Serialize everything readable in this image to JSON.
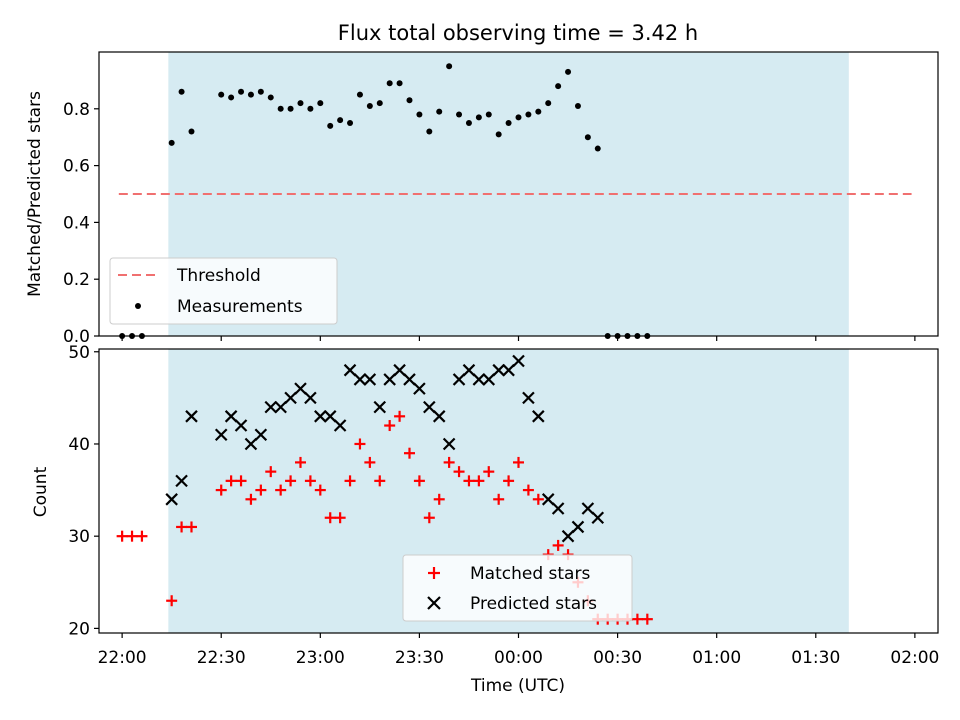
{
  "chart_data": [
    {
      "type": "scatter",
      "title": "Flux total observing time = 3.42 h",
      "ylabel": "Matched/Predicted stars",
      "xlim": [
        "21:53",
        "02:07"
      ],
      "ylim": [
        0,
        1.0
      ],
      "yticks": [
        "0.0",
        "0.2",
        "0.4",
        "0.6",
        "0.8"
      ],
      "shaded_region": [
        "22:14",
        "01:40"
      ],
      "threshold": {
        "name": "Threshold",
        "value": 0.5,
        "x_range": [
          "21:59",
          "01:59"
        ],
        "color": "#f07070",
        "style": "dashed"
      },
      "legend_position": "lower-left",
      "series": [
        {
          "name": "Measurements",
          "marker": "dot",
          "color": "#000000",
          "x": [
            "22:00",
            "22:03",
            "22:06",
            "22:09",
            "22:12",
            "22:15",
            "22:18",
            "22:21",
            "22:24",
            "22:27",
            "22:30",
            "22:33",
            "22:36",
            "22:39",
            "22:42",
            "22:45",
            "22:48",
            "22:51",
            "22:54",
            "22:57",
            "23:00",
            "23:03",
            "23:06",
            "23:09",
            "23:12",
            "23:15",
            "23:18",
            "23:21",
            "23:24",
            "23:27",
            "23:30",
            "23:33",
            "23:36",
            "23:39",
            "23:42",
            "23:45",
            "23:48",
            "23:51",
            "23:54",
            "23:57",
            "00:00",
            "00:03",
            "00:06",
            "00:09",
            "00:12",
            "00:15",
            "00:18",
            "00:21",
            "00:24",
            "00:27",
            "00:30",
            "00:33",
            "00:36",
            "00:39",
            "00:42",
            "00:45",
            "00:48",
            "00:51",
            "00:54",
            "00:57",
            "01:00",
            "01:03",
            "01:06",
            "01:09",
            "01:12",
            "01:15",
            "01:18",
            "01:21",
            "01:24",
            "01:27",
            "01:30",
            "01:33",
            "01:36",
            "01:39",
            "01:42",
            "01:45",
            "01:48",
            "01:51",
            "01:54",
            "01:57",
            "02:00"
          ],
          "y": [
            0,
            0,
            0,
            null,
            null,
            0.68,
            0.86,
            0.72,
            null,
            null,
            0.85,
            0.84,
            0.86,
            0.85,
            0.86,
            0.84,
            0.8,
            0.8,
            0.82,
            0.8,
            0.82,
            0.74,
            0.76,
            0.75,
            0.85,
            0.81,
            0.82,
            0.89,
            0.89,
            0.83,
            0.78,
            0.72,
            0.79,
            0.95,
            0.78,
            0.75,
            0.77,
            0.78,
            0.71,
            0.75,
            0.77,
            0.78,
            0.79,
            0.82,
            0.88,
            0.93,
            0.81,
            0.7,
            0.66,
            0,
            0,
            0,
            0,
            0,
            null,
            null,
            null,
            null,
            null,
            null,
            null,
            null,
            null,
            null,
            null,
            null,
            null,
            null,
            null,
            null,
            null,
            null,
            null,
            null,
            null,
            null,
            null,
            null,
            null,
            null,
            null
          ]
        }
      ]
    },
    {
      "type": "scatter",
      "ylabel": "Count",
      "xlabel": "Time (UTC)",
      "xlim": [
        "21:53",
        "02:07"
      ],
      "ylim": [
        19.5,
        50.3
      ],
      "yticks": [
        "20",
        "30",
        "40",
        "50"
      ],
      "xticks": [
        "22:00",
        "22:30",
        "23:00",
        "23:30",
        "00:00",
        "00:30",
        "01:00",
        "01:30",
        "02:00"
      ],
      "shaded_region": [
        "22:14",
        "01:40"
      ],
      "legend_position": "lower-center",
      "series": [
        {
          "name": "Matched stars",
          "marker": "plus",
          "color": "#ff0000",
          "x": [
            "22:00",
            "22:03",
            "22:06",
            "22:09",
            "22:12",
            "22:15",
            "22:18",
            "22:21",
            "22:24",
            "22:27",
            "22:30",
            "22:33",
            "22:36",
            "22:39",
            "22:42",
            "22:45",
            "22:48",
            "22:51",
            "22:54",
            "22:57",
            "23:00",
            "23:03",
            "23:06",
            "23:09",
            "23:12",
            "23:15",
            "23:18",
            "23:21",
            "23:24",
            "23:27",
            "23:30",
            "23:33",
            "23:36",
            "23:39",
            "23:42",
            "23:45",
            "23:48",
            "23:51",
            "23:54",
            "23:57",
            "00:00",
            "00:03",
            "00:06",
            "00:09",
            "00:12",
            "00:15",
            "00:18",
            "00:21",
            "00:24",
            "00:27",
            "00:30",
            "00:33",
            "00:36",
            "00:39",
            "00:42",
            "00:45",
            "00:48",
            "00:51",
            "00:54",
            "00:57",
            "01:00",
            "01:03",
            "01:06",
            "01:09",
            "01:12",
            "01:15",
            "01:18",
            "01:21",
            "01:24",
            "01:27",
            "01:30",
            "01:33",
            "01:36",
            "01:39",
            "01:42",
            "01:45",
            "01:48",
            "01:51",
            "01:54",
            "01:57",
            "02:00"
          ],
          "y": [
            30,
            30,
            30,
            null,
            null,
            23,
            31,
            31,
            null,
            null,
            35,
            36,
            36,
            34,
            35,
            37,
            35,
            36,
            38,
            36,
            35,
            32,
            32,
            36,
            40,
            38,
            36,
            42,
            43,
            39,
            36,
            32,
            34,
            38,
            37,
            36,
            36,
            37,
            34,
            36,
            38,
            35,
            34,
            28,
            29,
            28,
            25,
            23,
            21,
            21,
            21,
            21,
            21,
            21,
            null,
            null,
            null,
            null,
            null,
            null,
            null,
            null,
            null,
            null,
            null,
            null,
            null,
            null,
            null,
            null,
            null,
            null,
            null,
            null,
            null,
            null,
            null,
            null,
            null,
            null,
            null
          ]
        },
        {
          "name": "Predicted stars",
          "marker": "x",
          "color": "#000000",
          "x": [
            "22:15",
            "22:18",
            "22:21",
            "22:24",
            "22:27",
            "22:30",
            "22:33",
            "22:36",
            "22:39",
            "22:42",
            "22:45",
            "22:48",
            "22:51",
            "22:54",
            "22:57",
            "23:00",
            "23:03",
            "23:06",
            "23:09",
            "23:12",
            "23:15",
            "23:18",
            "23:21",
            "23:24",
            "23:27",
            "23:30",
            "23:33",
            "23:36",
            "23:39",
            "23:42",
            "23:45",
            "23:48",
            "23:51",
            "23:54",
            "23:57",
            "00:00",
            "00:03",
            "00:06",
            "00:09",
            "00:12",
            "00:15",
            "00:18",
            "00:21",
            "00:24",
            "00:27",
            "00:30",
            "00:33",
            "00:36",
            "00:39"
          ],
          "y": [
            34,
            36,
            43,
            null,
            null,
            41,
            43,
            42,
            40,
            41,
            44,
            44,
            45,
            46,
            45,
            43,
            43,
            42,
            48,
            47,
            47,
            44,
            47,
            48,
            47,
            46,
            44,
            43,
            40,
            47,
            48,
            47,
            47,
            48,
            48,
            49,
            45,
            43,
            34,
            33,
            30,
            31,
            33,
            32,
            null,
            null,
            null,
            null,
            null
          ]
        }
      ]
    }
  ]
}
